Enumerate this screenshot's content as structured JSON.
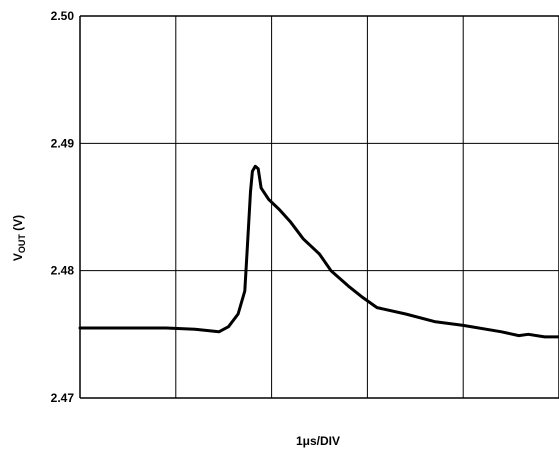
{
  "chart_data": {
    "type": "line",
    "title": "",
    "xlabel": "1μs/DIV",
    "ylabel_main": "V",
    "ylabel_sub": "OUT",
    "ylabel_suffix": " (V)",
    "ylim": [
      2.47,
      2.5
    ],
    "xlim": [
      0,
      5
    ],
    "x_divisions": 5,
    "grid": true,
    "yticks": [
      {
        "value": 2.47,
        "label": "2.47"
      },
      {
        "value": 2.48,
        "label": "2.48"
      },
      {
        "value": 2.49,
        "label": "2.49"
      },
      {
        "value": 2.5,
        "label": "2.50"
      }
    ],
    "series": [
      {
        "points": [
          [
            0.0,
            2.4755
          ],
          [
            0.9,
            2.4755
          ],
          [
            1.2,
            2.4754
          ],
          [
            1.45,
            2.4752
          ],
          [
            1.55,
            2.4756
          ],
          [
            1.65,
            2.4766
          ],
          [
            1.72,
            2.4784
          ],
          [
            1.75,
            2.4822
          ],
          [
            1.78,
            2.4862
          ],
          [
            1.8,
            2.4878
          ],
          [
            1.83,
            2.4882
          ],
          [
            1.86,
            2.488
          ],
          [
            1.89,
            2.4865
          ],
          [
            1.97,
            2.4856
          ],
          [
            2.08,
            2.4848
          ],
          [
            2.2,
            2.4838
          ],
          [
            2.33,
            2.4825
          ],
          [
            2.5,
            2.4813
          ],
          [
            2.62,
            2.48
          ],
          [
            2.8,
            2.4788
          ],
          [
            2.95,
            2.4779
          ],
          [
            3.1,
            2.4771
          ],
          [
            3.4,
            2.4766
          ],
          [
            3.7,
            2.476
          ],
          [
            4.0,
            2.4757
          ],
          [
            4.4,
            2.4752
          ],
          [
            4.58,
            2.4749
          ],
          [
            4.68,
            2.475
          ],
          [
            4.85,
            2.4748
          ],
          [
            5.0,
            2.4748
          ]
        ]
      }
    ]
  }
}
